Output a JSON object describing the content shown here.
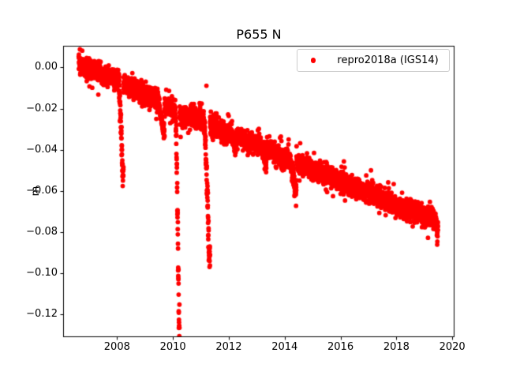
{
  "figure_background": "#ffffff",
  "chart_data": {
    "type": "scatter",
    "title": "P655 N",
    "xlabel": "",
    "ylabel": "m",
    "grid": false,
    "legend": {
      "position": "upper right",
      "entries": [
        {
          "label": "repro2018a (IGS14)",
          "marker_color": "#ff0000"
        }
      ]
    },
    "marker": {
      "color": "#ff0000",
      "radius_px": 2.9
    },
    "axes": {
      "xlim": [
        2006.07,
        2020.08
      ],
      "ylim": [
        -0.131,
        0.0105
      ],
      "xticks": [
        {
          "v": 2008,
          "label": "2008"
        },
        {
          "v": 2010,
          "label": "2010"
        },
        {
          "v": 2012,
          "label": "2012"
        },
        {
          "v": 2014,
          "label": "2014"
        },
        {
          "v": 2016,
          "label": "2016"
        },
        {
          "v": 2018,
          "label": "2018"
        },
        {
          "v": 2020,
          "label": "2020"
        }
      ],
      "yticks": [
        {
          "v": 0.0,
          "label": "0.00"
        },
        {
          "v": -0.02,
          "label": "−0.02"
        },
        {
          "v": -0.04,
          "label": "−0.04"
        },
        {
          "v": -0.06,
          "label": "−0.06"
        },
        {
          "v": -0.08,
          "label": "−0.08"
        },
        {
          "v": -0.1,
          "label": "−0.10"
        },
        {
          "v": -0.12,
          "label": "−0.12"
        }
      ]
    },
    "series": [
      {
        "name": "repro2018a (IGS14)",
        "color": "#ff0000",
        "description": "Daily GPS north-component displacement in meters; linear secular trend of about -5.8 mm/yr from ~0.000 m in late 2006 to ~-0.074 m in mid 2019, with transient downward excursions (dips) near 2008.1 (to -0.052), 2009.6 (to -0.030), 2010.15 (to -0.124), 2011.2 (to -0.091), and smaller dips in 2012.2, 2013.2, 2014.3.",
        "model": {
          "start": 2006.63,
          "end": 2019.49,
          "samples_per_year": 365,
          "gap_probability": 0.02,
          "noise_std": 0.0022,
          "wide_noise_std": 0.0042,
          "wide_noise_prob": 0.08,
          "seed": 11,
          "trend_anchors": [
            [
              2006.63,
              0.0015
            ],
            [
              2007.5,
              -0.0035
            ],
            [
              2008.3,
              -0.008
            ],
            [
              2009.3,
              -0.0145
            ],
            [
              2010.3,
              -0.0235
            ],
            [
              2011.0,
              -0.0255
            ],
            [
              2012.0,
              -0.0315
            ],
            [
              2013.0,
              -0.0375
            ],
            [
              2014.0,
              -0.0435
            ],
            [
              2015.0,
              -0.0495
            ],
            [
              2016.0,
              -0.0555
            ],
            [
              2017.0,
              -0.061
            ],
            [
              2018.0,
              -0.067
            ],
            [
              2019.0,
              -0.072
            ],
            [
              2019.49,
              -0.0742
            ]
          ],
          "events": [
            {
              "start": 2008.04,
              "end": 2008.23,
              "depth": 0.045
            },
            {
              "start": 2009.42,
              "end": 2009.7,
              "depth": 0.0125
            },
            {
              "start": 2010.08,
              "end": 2010.24,
              "depth": 0.102
            },
            {
              "start": 2011.1,
              "end": 2011.33,
              "depth": 0.064
            },
            {
              "start": 2012.1,
              "end": 2012.25,
              "depth": 0.0065
            },
            {
              "start": 2013.15,
              "end": 2013.35,
              "depth": 0.0065
            },
            {
              "start": 2014.15,
              "end": 2014.42,
              "depth": 0.014
            },
            {
              "start": 2019.32,
              "end": 2019.49,
              "depth": 0.004
            }
          ],
          "outliers": [
            [
              2007.33,
              -0.0132
            ],
            [
              2011.2,
              -0.0089
            ],
            [
              2013.04,
              -0.0305
            ],
            [
              2013.89,
              -0.049
            ],
            [
              2017.09,
              -0.05
            ]
          ]
        }
      }
    ]
  }
}
